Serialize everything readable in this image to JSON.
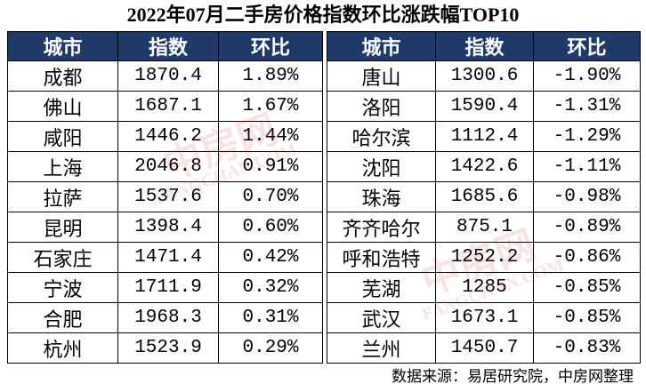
{
  "title": "2022年07月二手房价格指数环比涨跌幅TOP10",
  "tables": [
    {
      "header": [
        "城市",
        "指数",
        "环比"
      ],
      "rows": [
        [
          "成都",
          "1870.4",
          "1.89%"
        ],
        [
          "佛山",
          "1687.1",
          "1.67%"
        ],
        [
          "咸阳",
          "1446.2",
          "1.44%"
        ],
        [
          "上海",
          "2046.8",
          "0.91%"
        ],
        [
          "拉萨",
          "1537.6",
          "0.70%"
        ],
        [
          "昆明",
          "1398.4",
          "0.60%"
        ],
        [
          "石家庄",
          "1471.4",
          "0.42%"
        ],
        [
          "宁波",
          "1711.9",
          "0.32%"
        ],
        [
          "合肥",
          "1968.3",
          "0.31%"
        ],
        [
          "杭州",
          "1523.9",
          "0.29%"
        ]
      ]
    },
    {
      "header": [
        "城市",
        "指数",
        "环比"
      ],
      "rows": [
        [
          "唐山",
          "1300.6",
          "-1.90%"
        ],
        [
          "洛阳",
          "1590.4",
          "-1.31%"
        ],
        [
          "哈尔滨",
          "1112.4",
          "-1.29%"
        ],
        [
          "沈阳",
          "1422.6",
          "-1.11%"
        ],
        [
          "珠海",
          "1685.6",
          "-0.98%"
        ],
        [
          "齐齐哈尔",
          "875.1",
          "-0.89%"
        ],
        [
          "呼和浩特",
          "1252.2",
          "-0.86%"
        ],
        [
          "芜湖",
          "1285",
          "-0.85%"
        ],
        [
          "武汉",
          "1673.1",
          "-0.85%"
        ],
        [
          "兰州",
          "1450.7",
          "-0.83%"
        ]
      ]
    }
  ],
  "watermark": {
    "logo": "中房网",
    "url": "FANGCHAN.COM"
  },
  "source": "数据来源：易居研究院，中房网整理"
}
